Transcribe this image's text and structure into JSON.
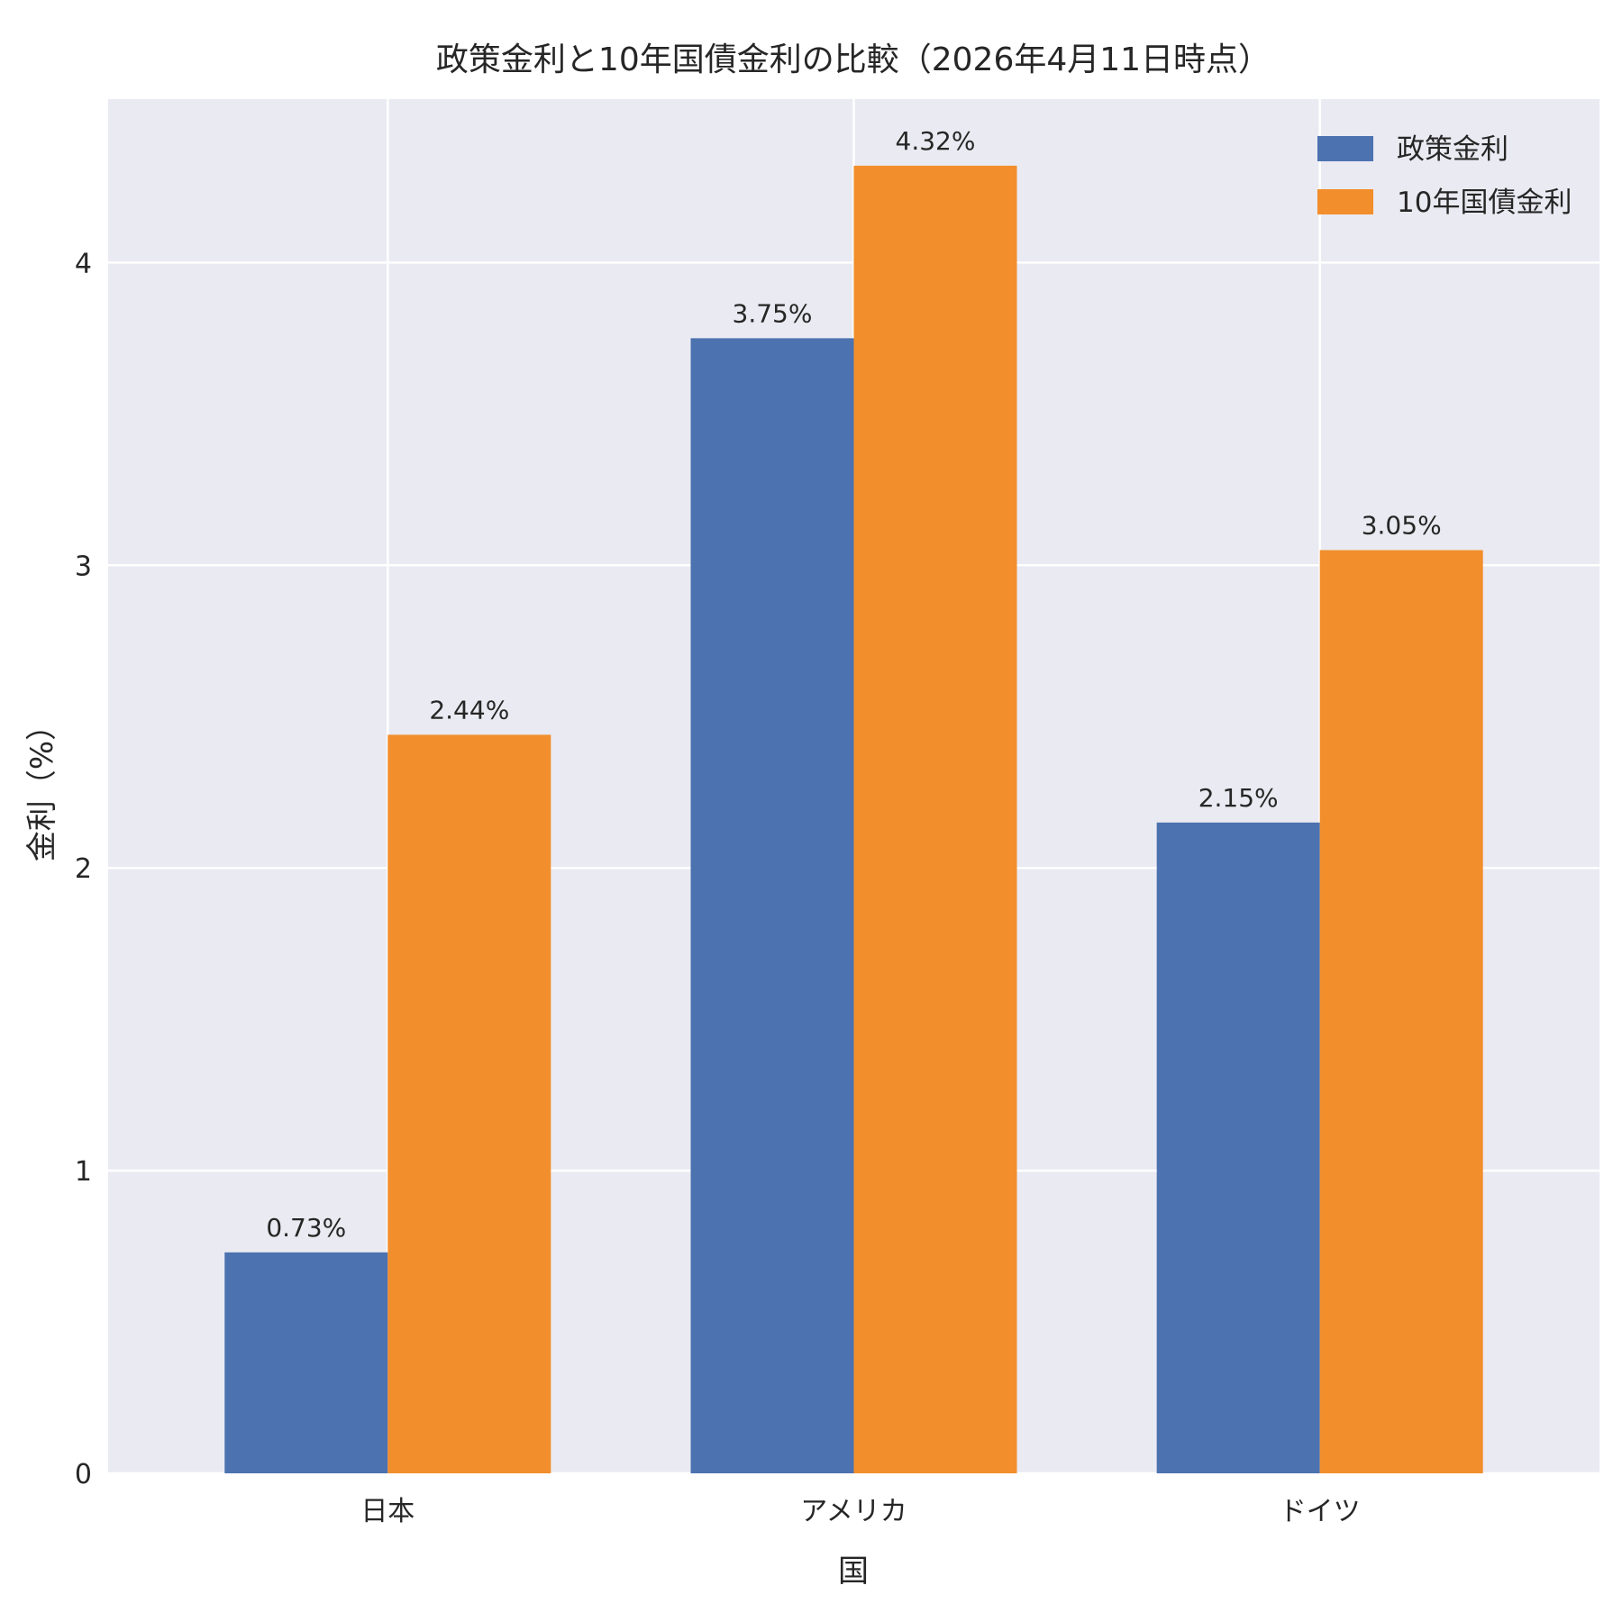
{
  "chart_data": {
    "type": "bar",
    "title": "政策金利と10年国債金利の比較（2026年4月11日時点）",
    "xlabel": "国",
    "ylabel": "金利（%）",
    "categories": [
      "日本",
      "アメリカ",
      "ドイツ"
    ],
    "series": [
      {
        "name": "政策金利",
        "values": [
          0.73,
          3.75,
          2.15
        ],
        "color": "#4c72b0"
      },
      {
        "name": "10年国債金利",
        "values": [
          2.44,
          4.32,
          3.05
        ],
        "color": "#f28e2b"
      }
    ],
    "data_labels": [
      [
        "0.73%",
        "3.75%",
        "2.15%"
      ],
      [
        "2.44%",
        "4.32%",
        "3.05%"
      ]
    ],
    "yticks": [
      "0",
      "1",
      "2",
      "3",
      "4"
    ],
    "ylim": [
      0,
      4.54
    ],
    "grid": true,
    "legend_position": "top-right",
    "plot_background": "#eaeaf2",
    "grid_color": "#ffffff"
  }
}
